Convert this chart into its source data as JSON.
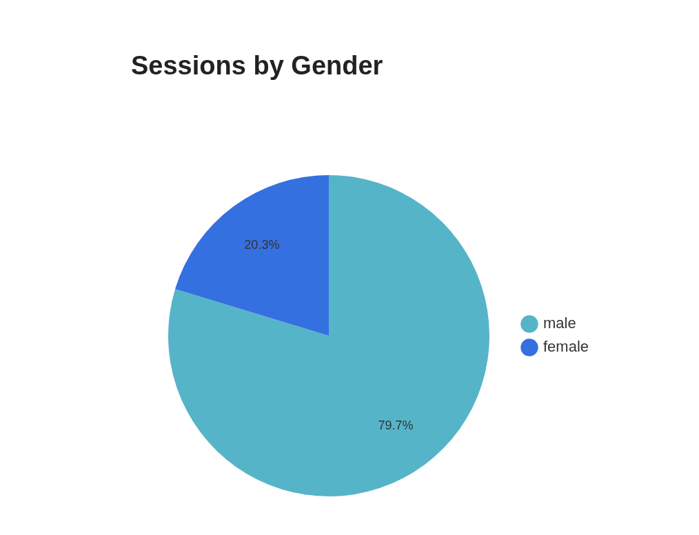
{
  "chart_data": {
    "type": "pie",
    "title": "Sessions by Gender",
    "categories": [
      "male",
      "female"
    ],
    "values": [
      79.7,
      20.3
    ],
    "colors": [
      "#56b4c8",
      "#3470e0"
    ],
    "value_labels": [
      "79.7%",
      "20.3%"
    ],
    "legend": "right"
  }
}
